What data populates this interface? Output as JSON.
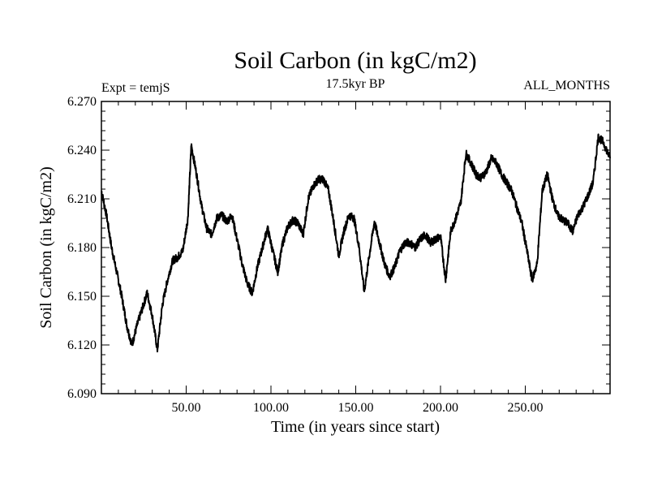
{
  "chart_data": {
    "type": "line",
    "title": "Soil Carbon (in kgC/m2)",
    "subtitle_left": "Expt = temjS",
    "subtitle_center": "17.5kyr BP",
    "subtitle_right": "ALL_MONTHS",
    "xlabel": "Time (in years since start)",
    "ylabel": "Soil Carbon (in kgC/m2)",
    "xlim": [
      0,
      300
    ],
    "ylim": [
      6.09,
      6.27
    ],
    "x_major_ticks": [
      50,
      100,
      150,
      200,
      250
    ],
    "x_tick_labels": [
      "50.00",
      "100.00",
      "150.00",
      "200.00",
      "250.00"
    ],
    "y_major_ticks": [
      6.09,
      6.12,
      6.15,
      6.18,
      6.21,
      6.24,
      6.27
    ],
    "y_tick_labels": [
      "6.090",
      "6.120",
      "6.150",
      "6.180",
      "6.210",
      "6.240",
      "6.270"
    ],
    "series": [
      {
        "name": "Soil Carbon",
        "color": "#000000",
        "x": [
          0,
          3,
          6,
          9,
          12,
          15,
          18,
          21,
          24,
          27,
          30,
          33,
          36,
          39,
          42,
          45,
          48,
          51,
          53,
          56,
          59,
          62,
          65,
          68,
          71,
          74,
          77,
          80,
          83,
          86,
          89,
          92,
          95,
          98,
          101,
          104,
          107,
          110,
          113,
          116,
          119,
          122,
          125,
          128,
          131,
          134,
          137,
          140,
          143,
          146,
          149,
          152,
          155,
          158,
          161,
          164,
          167,
          170,
          173,
          176,
          179,
          182,
          185,
          188,
          191,
          194,
          197,
          200,
          203,
          206,
          209,
          212,
          215,
          218,
          221,
          224,
          227,
          230,
          233,
          236,
          239,
          242,
          245,
          248,
          251,
          254,
          257,
          260,
          263,
          266,
          269,
          272,
          275,
          278,
          281,
          284,
          287,
          290,
          293,
          296,
          300
        ],
        "values": [
          6.215,
          6.2,
          6.18,
          6.165,
          6.15,
          6.132,
          6.12,
          6.132,
          6.142,
          6.152,
          6.138,
          6.117,
          6.145,
          6.16,
          6.172,
          6.174,
          6.178,
          6.198,
          6.243,
          6.226,
          6.206,
          6.192,
          6.188,
          6.198,
          6.2,
          6.196,
          6.2,
          6.185,
          6.17,
          6.158,
          6.152,
          6.168,
          6.18,
          6.192,
          6.178,
          6.165,
          6.183,
          6.193,
          6.197,
          6.195,
          6.188,
          6.21,
          6.218,
          6.222,
          6.222,
          6.215,
          6.196,
          6.175,
          6.19,
          6.2,
          6.198,
          6.18,
          6.153,
          6.175,
          6.196,
          6.183,
          6.17,
          6.162,
          6.168,
          6.178,
          6.183,
          6.183,
          6.18,
          6.185,
          6.188,
          6.183,
          6.185,
          6.187,
          6.16,
          6.19,
          6.198,
          6.208,
          6.238,
          6.232,
          6.225,
          6.223,
          6.227,
          6.235,
          6.232,
          6.225,
          6.22,
          6.215,
          6.205,
          6.195,
          6.178,
          6.16,
          6.17,
          6.215,
          6.225,
          6.21,
          6.2,
          6.197,
          6.195,
          6.19,
          6.2,
          6.205,
          6.212,
          6.22,
          6.248,
          6.245,
          6.235
        ]
      }
    ]
  }
}
